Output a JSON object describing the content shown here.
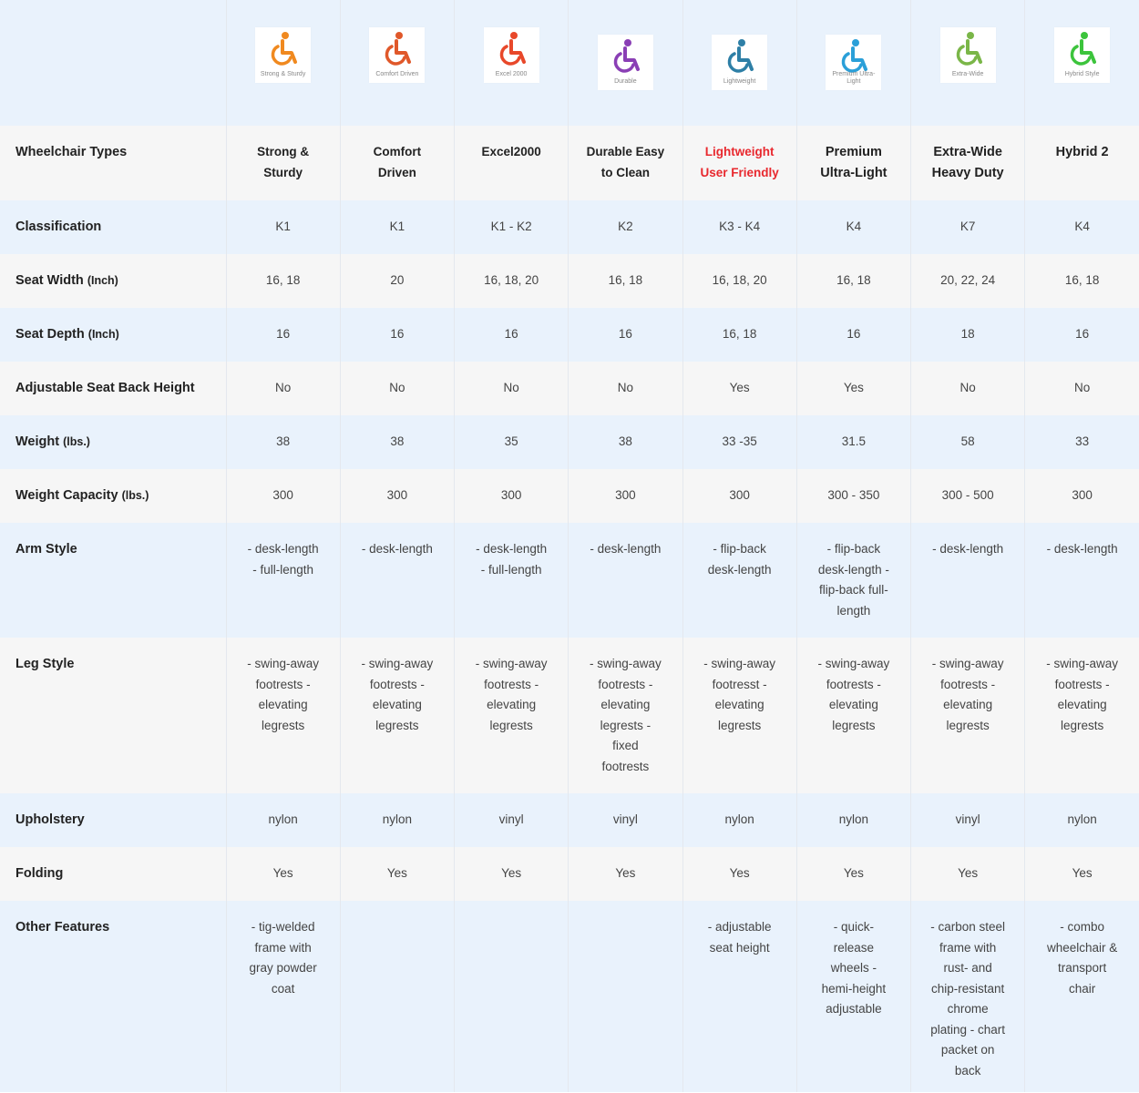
{
  "columns": [
    {
      "logo_caption": "Strong & Sturdy",
      "logo_color": "#f0891f",
      "type": "Strong &\nSturdy",
      "classification": "K1",
      "seat_width": "16, 18",
      "seat_depth": "16",
      "adjustable_back": "No",
      "weight": "38",
      "capacity": "300",
      "arm_style": "- desk-length\n- full-length",
      "leg_style": "- swing-away\nfootrests -\nelevating\nlegrests",
      "upholstery": "nylon",
      "folding": "Yes",
      "other": "- tig-welded\nframe with\ngray powder\ncoat"
    },
    {
      "logo_caption": "Comfort Driven",
      "logo_color": "#e0582a",
      "type": "Comfort\nDriven",
      "classification": "K1",
      "seat_width": "20",
      "seat_depth": "16",
      "adjustable_back": "No",
      "weight": "38",
      "capacity": "300",
      "arm_style": "- desk-length",
      "leg_style": "- swing-away\nfootrests -\nelevating\nlegrests",
      "upholstery": "nylon",
      "folding": "Yes",
      "other": ""
    },
    {
      "logo_caption": "Excel 2000",
      "logo_color": "#e8482a",
      "type": "Excel2000",
      "classification": "K1 - K2",
      "seat_width": "16, 18, 20",
      "seat_depth": "16",
      "adjustable_back": "No",
      "weight": "35",
      "capacity": "300",
      "arm_style": "- desk-length\n- full-length",
      "leg_style": "- swing-away\nfootrests -\nelevating\nlegrests",
      "upholstery": "vinyl",
      "folding": "Yes",
      "other": ""
    },
    {
      "logo_caption": "Durable",
      "logo_color": "#8a3fb5",
      "type": "Durable Easy\nto Clean",
      "classification": "K2",
      "seat_width": "16, 18",
      "seat_depth": "16",
      "adjustable_back": "No",
      "weight": "38",
      "capacity": "300",
      "arm_style": "- desk-length",
      "leg_style": "- swing-away\nfootrests -\nelevating\nlegrests -\nfixed\nfootrests",
      "upholstery": "vinyl",
      "folding": "Yes",
      "other": ""
    },
    {
      "logo_caption": "Lightweight",
      "logo_color": "#2e7fa6",
      "type": "Lightweight\nUser Friendly",
      "classification": "K3 - K4",
      "seat_width": "16, 18, 20",
      "seat_depth": "16, 18",
      "adjustable_back": "Yes",
      "weight": "33 -35",
      "capacity": "300",
      "arm_style": "- flip-back\ndesk-length",
      "leg_style": "- swing-away\nfootresst -\nelevating\nlegrests",
      "upholstery": "nylon",
      "folding": "Yes",
      "other": "- adjustable\nseat height"
    },
    {
      "logo_caption": "Premium Ultra-Light",
      "logo_color": "#2a9fd8",
      "type": "Premium\nUltra-Light",
      "classification": "K4",
      "seat_width": "16, 18",
      "seat_depth": "16",
      "adjustable_back": "Yes",
      "weight": "31.5",
      "capacity": "300 - 350",
      "arm_style": "- flip-back\ndesk-length -\nflip-back full-\nlength",
      "leg_style": "- swing-away\nfootrests -\nelevating\nlegrests",
      "upholstery": "nylon",
      "folding": "Yes",
      "other": "- quick-\nrelease\nwheels -\nhemi-height\nadjustable"
    },
    {
      "logo_caption": "Extra-Wide",
      "logo_color": "#7ab648",
      "type": "Extra-Wide\nHeavy Duty",
      "classification": "K7",
      "seat_width": "20, 22, 24",
      "seat_depth": "18",
      "adjustable_back": "No",
      "weight": "58",
      "capacity": "300 - 500",
      "arm_style": "- desk-length",
      "leg_style": "- swing-away\nfootrests -\nelevating\nlegrests",
      "upholstery": "vinyl",
      "folding": "Yes",
      "other": "- carbon steel\nframe with\nrust- and\nchip-resistant\nchrome\nplating - chart\npacket on\nback"
    },
    {
      "logo_caption": "Hybrid Style",
      "logo_color": "#3cc43c",
      "type": "Hybrid 2",
      "classification": "K4",
      "seat_width": "16, 18",
      "seat_depth": "16",
      "adjustable_back": "No",
      "weight": "33",
      "capacity": "300",
      "arm_style": "- desk-length",
      "leg_style": "- swing-away\nfootrests -\nelevating\nlegrests",
      "upholstery": "nylon",
      "folding": "Yes",
      "other": "- combo\nwheelchair &\ntransport\nchair"
    }
  ],
  "rows": [
    {
      "key": "type",
      "label": "Wheelchair Types",
      "unit": "",
      "band": "plain",
      "height": 82
    },
    {
      "key": "classification",
      "label": "Classification",
      "unit": "",
      "band": "alt",
      "height": 59
    },
    {
      "key": "seat_width",
      "label": "Seat Width",
      "unit": "(Inch)",
      "band": "plain",
      "height": 59
    },
    {
      "key": "seat_depth",
      "label": "Seat Depth",
      "unit": "(Inch)",
      "band": "alt",
      "height": 59
    },
    {
      "key": "adjustable_back",
      "label": "Adjustable Seat Back Height",
      "unit": "",
      "band": "plain",
      "height": 59
    },
    {
      "key": "weight",
      "label": "Weight",
      "unit": "(lbs.)",
      "band": "alt",
      "height": 59
    },
    {
      "key": "capacity",
      "label": "Weight Capacity",
      "unit": "(lbs.)",
      "band": "plain",
      "height": 59
    },
    {
      "key": "arm_style",
      "label": "Arm Style",
      "unit": "",
      "band": "alt",
      "height": 126
    },
    {
      "key": "leg_style",
      "label": "Leg Style",
      "unit": "",
      "band": "plain",
      "height": 171
    },
    {
      "key": "upholstery",
      "label": "Upholstery",
      "unit": "",
      "band": "alt",
      "height": 59
    },
    {
      "key": "folding",
      "label": "Folding",
      "unit": "",
      "band": "plain",
      "height": 59
    },
    {
      "key": "other",
      "label": "Other Features",
      "unit": "",
      "band": "alt",
      "height": 210
    }
  ]
}
